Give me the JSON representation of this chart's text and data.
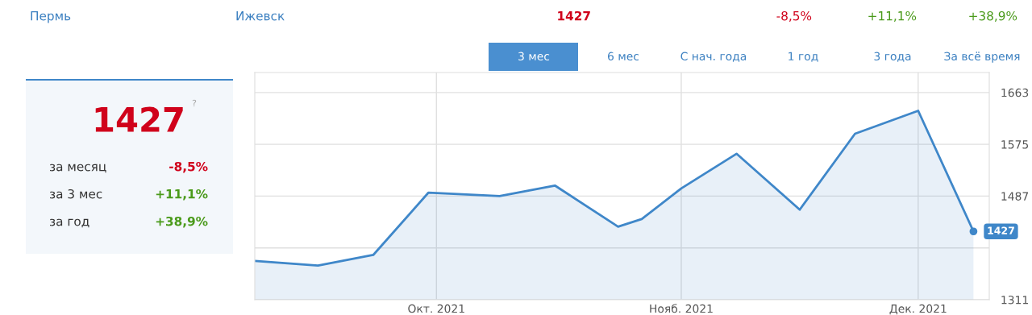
{
  "chart_data": {
    "type": "area",
    "x": [
      "2021-09-08",
      "2021-09-16",
      "2021-09-23",
      "2021-09-30",
      "2021-10-09",
      "2021-10-16",
      "2021-10-24",
      "2021-10-27",
      "2021-11-01",
      "2021-11-08",
      "2021-11-16",
      "2021-11-23",
      "2021-12-01",
      "2021-12-08"
    ],
    "series": [
      {
        "color": "#3f87c9",
        "values": [
          1377,
          1369,
          1387,
          1493,
          1487,
          1505,
          1435,
          1448,
          1500,
          1559,
          1464,
          1593,
          1632,
          1427
        ]
      }
    ],
    "xlim": [
      "2021-09-08",
      "2021-12-10"
    ],
    "xticks": [
      {
        "value": "2021-10-01",
        "label": "Окт. 2021"
      },
      {
        "value": "2021-11-01",
        "label": "Нояб. 2021"
      },
      {
        "value": "2021-12-01",
        "label": "Дек. 2021"
      }
    ],
    "ylim": [
      1311,
      1697
    ],
    "yticks": [
      1311,
      {
        "value": 1399,
        "label": null
      },
      1487,
      1575,
      1663
    ],
    "grid": true,
    "legend": false,
    "marker": "none",
    "line_style": "solid",
    "annotations": [
      {
        "text": "1427",
        "x": "2021-12-08",
        "y": 1427
      },
      "Пермь",
      "Ижевск",
      "1427",
      "-8,5%",
      "+11,1%",
      "+38,9%",
      "3 мес",
      "6 мес",
      "С нач. года",
      "1 год",
      "3 года",
      "За всё время",
      "1427",
      "?",
      "за месяц",
      "-8,5%",
      "за 3 мес",
      "+11,1%",
      "за год",
      "+38,9%"
    ]
  }
}
